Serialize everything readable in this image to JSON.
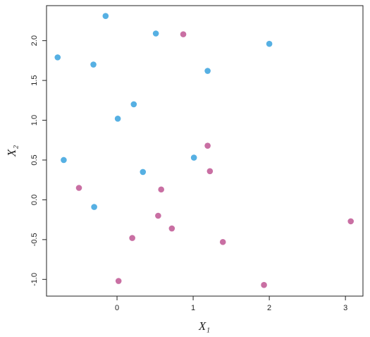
{
  "chart_data": {
    "type": "scatter",
    "x_label": "X₁",
    "y_label": "X₂",
    "xlim": [
      -0.926,
      3.23
    ],
    "ylim": [
      -1.21,
      2.44
    ],
    "xticks": [
      0,
      1,
      2,
      3
    ],
    "yticks": [
      {
        "value": -1,
        "label": "-1.0"
      },
      -0.5,
      {
        "value": 0,
        "label": "0.0"
      },
      0.5,
      {
        "value": 1,
        "label": "1.0"
      },
      1.5,
      {
        "value": 2,
        "label": "2.0"
      }
    ],
    "series": [
      {
        "color": "#56b0e3",
        "x": [
          -0.15,
          0.51,
          -0.78,
          -0.31,
          2.0,
          1.19,
          0.22,
          0.01,
          -0.7,
          0.34,
          1.01,
          -0.3
        ],
        "values": [
          2.31,
          2.09,
          1.79,
          1.7,
          1.96,
          1.62,
          1.2,
          1.02,
          0.5,
          0.35,
          0.53,
          -0.09
        ]
      },
      {
        "color": "#c96fa3",
        "x": [
          0.87,
          1.19,
          1.22,
          -0.5,
          0.58,
          0.54,
          0.2,
          0.72,
          1.39,
          3.07,
          0.02,
          1.93
        ],
        "values": [
          2.08,
          0.68,
          0.36,
          0.15,
          0.13,
          -0.2,
          -0.48,
          -0.36,
          -0.53,
          -0.27,
          -1.02,
          -1.07
        ]
      }
    ]
  }
}
